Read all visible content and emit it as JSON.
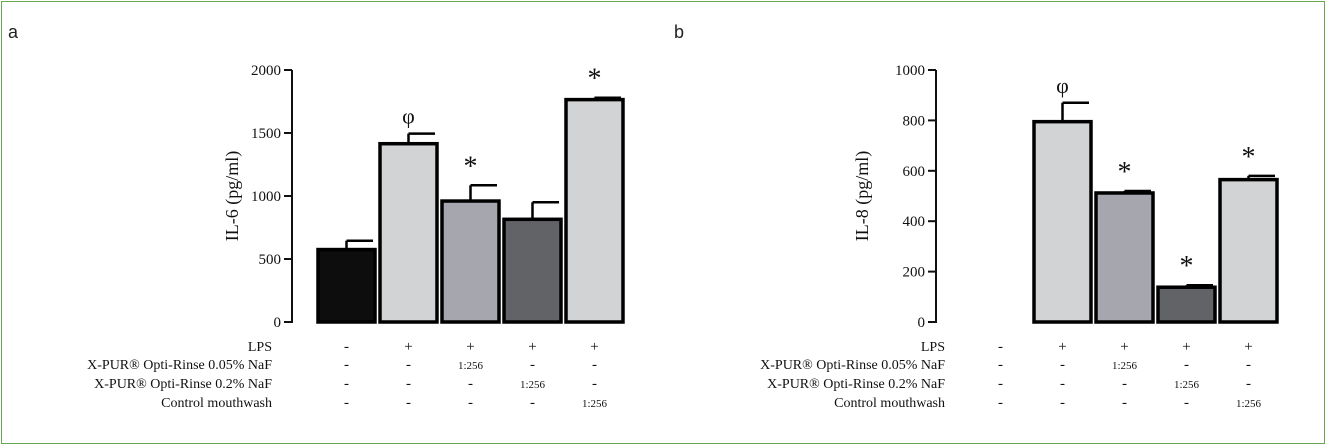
{
  "chart_data": [
    {
      "panel_label": "a",
      "type": "bar",
      "ylabel": "IL-6 (pg/ml)",
      "ylim": [
        0,
        2000
      ],
      "yticks": [
        "0",
        "500",
        "1000",
        "1500",
        "2000"
      ],
      "values": [
        575,
        1415,
        960,
        815,
        1765
      ],
      "errors": [
        70,
        80,
        125,
        135,
        15
      ],
      "colors": [
        "#0d0d0d",
        "#d2d3d5",
        "#a6a6ae",
        "#626366",
        "#d2d3d5"
      ],
      "significance": [
        "",
        "φ",
        "*",
        "",
        "*"
      ],
      "condition_rows": [
        {
          "label": "LPS",
          "cells": [
            "-",
            "+",
            "+",
            "+",
            "+"
          ]
        },
        {
          "label": "X-PUR® Opti-Rinse 0.05% NaF",
          "cells": [
            "-",
            "-",
            "1:256",
            "-",
            "-"
          ]
        },
        {
          "label": "X-PUR® Opti-Rinse 0.2% NaF",
          "cells": [
            "-",
            "-",
            "-",
            "1:256",
            "-"
          ]
        },
        {
          "label": "Control mouthwash",
          "cells": [
            "-",
            "-",
            "-",
            "-",
            "1:256"
          ]
        }
      ]
    },
    {
      "panel_label": "b",
      "type": "bar",
      "ylabel": "IL-8 (pg/ml)",
      "ylim": [
        0,
        1000
      ],
      "yticks": [
        "0",
        "200",
        "400",
        "600",
        "800",
        "1000"
      ],
      "values": [
        0,
        795,
        512,
        138,
        565
      ],
      "errors": [
        0,
        75,
        8,
        8,
        15
      ],
      "colors": [
        "#0d0d0d",
        "#d2d3d5",
        "#a6a6ae",
        "#626366",
        "#d2d3d5"
      ],
      "significance": [
        "",
        "φ",
        "*",
        "*",
        "*"
      ],
      "condition_rows": [
        {
          "label": "LPS",
          "cells": [
            "-",
            "+",
            "+",
            "+",
            "+"
          ]
        },
        {
          "label": "X-PUR® Opti-Rinse 0.05% NaF",
          "cells": [
            "-",
            "-",
            "1:256",
            "-",
            "-"
          ]
        },
        {
          "label": "X-PUR® Opti-Rinse 0.2% NaF",
          "cells": [
            "-",
            "-",
            "-",
            "1:256",
            "-"
          ]
        },
        {
          "label": "Control mouthwash",
          "cells": [
            "-",
            "-",
            "-",
            "-",
            "1:256"
          ]
        }
      ]
    }
  ]
}
